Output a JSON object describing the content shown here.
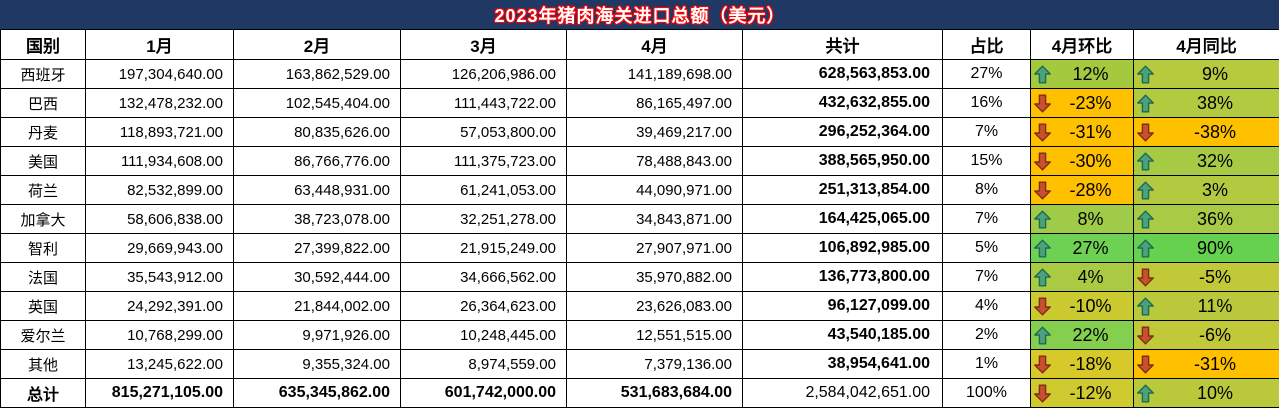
{
  "title": "2023年猪肉海关进口总额（美元）",
  "colors": {
    "title_bg": "#1F3864",
    "title_text": "#FFFFFF",
    "title_outline": "#FF0000",
    "grid_line": "#000000",
    "negative_cell": "#FFC000",
    "arrow_up_fill": "#4DA17C",
    "arrow_up_stroke": "#1E6B4D",
    "arrow_down_fill": "#C9502D",
    "arrow_down_stroke": "#7E2D18"
  },
  "table": {
    "headers": [
      "国别",
      "1月",
      "2月",
      "3月",
      "4月",
      "共计",
      "占比",
      "4月环比",
      "4月同比"
    ],
    "rows": [
      {
        "country": "西班牙",
        "values": [
          "197,304,640.00",
          "163,862,529.00",
          "126,206,986.00",
          "141,189,698.00"
        ],
        "total": "628,563,853.00",
        "share": "27%",
        "mom": {
          "dir": "up",
          "value": "12%",
          "bg": "#A4C93F"
        },
        "yoy": {
          "dir": "up",
          "value": "9%",
          "bg": "#B7C93C"
        },
        "is_total_row": false
      },
      {
        "country": "巴西",
        "values": [
          "132,478,232.00",
          "102,545,404.00",
          "111,443,722.00",
          "86,165,497.00"
        ],
        "total": "432,632,855.00",
        "share": "16%",
        "mom": {
          "dir": "down",
          "value": "-23%",
          "bg": "#FFC000"
        },
        "yoy": {
          "dir": "up",
          "value": "38%",
          "bg": "#B2CA40"
        },
        "is_total_row": false
      },
      {
        "country": "丹麦",
        "values": [
          "118,893,721.00",
          "80,835,626.00",
          "57,053,800.00",
          "39,469,217.00"
        ],
        "total": "296,252,364.00",
        "share": "7%",
        "mom": {
          "dir": "down",
          "value": "-31%",
          "bg": "#FFC000"
        },
        "yoy": {
          "dir": "down",
          "value": "-38%",
          "bg": "#FFC000"
        },
        "is_total_row": false
      },
      {
        "country": "美国",
        "values": [
          "111,934,608.00",
          "86,766,776.00",
          "111,375,723.00",
          "78,488,843.00"
        ],
        "total": "388,565,950.00",
        "share": "15%",
        "mom": {
          "dir": "down",
          "value": "-30%",
          "bg": "#FFC000"
        },
        "yoy": {
          "dir": "up",
          "value": "32%",
          "bg": "#A7CA45"
        },
        "is_total_row": false
      },
      {
        "country": "荷兰",
        "values": [
          "82,532,899.00",
          "63,448,931.00",
          "61,241,053.00",
          "44,090,971.00"
        ],
        "total": "251,313,854.00",
        "share": "8%",
        "mom": {
          "dir": "down",
          "value": "-28%",
          "bg": "#FFC000"
        },
        "yoy": {
          "dir": "up",
          "value": "3%",
          "bg": "#B3CA40"
        },
        "is_total_row": false
      },
      {
        "country": "加拿大",
        "values": [
          "58,606,838.00",
          "38,723,078.00",
          "32,251,278.00",
          "34,843,871.00"
        ],
        "total": "164,425,065.00",
        "share": "7%",
        "mom": {
          "dir": "up",
          "value": "8%",
          "bg": "#9FCB49"
        },
        "yoy": {
          "dir": "up",
          "value": "36%",
          "bg": "#A8CA44"
        },
        "is_total_row": false
      },
      {
        "country": "智利",
        "values": [
          "29,669,943.00",
          "27,399,822.00",
          "21,915,249.00",
          "27,907,971.00"
        ],
        "total": "106,892,985.00",
        "share": "5%",
        "mom": {
          "dir": "up",
          "value": "27%",
          "bg": "#6FD153"
        },
        "yoy": {
          "dir": "up",
          "value": "90%",
          "bg": "#66D14F"
        },
        "is_total_row": false
      },
      {
        "country": "法国",
        "values": [
          "35,543,912.00",
          "30,592,444.00",
          "34,666,562.00",
          "35,970,882.00"
        ],
        "total": "136,773,800.00",
        "share": "7%",
        "mom": {
          "dir": "up",
          "value": "4%",
          "bg": "#ABCA43"
        },
        "yoy": {
          "dir": "down",
          "value": "-5%",
          "bg": "#C2C938"
        },
        "is_total_row": false
      },
      {
        "country": "英国",
        "values": [
          "24,292,391.00",
          "21,844,002.00",
          "26,364,623.00",
          "23,626,083.00"
        ],
        "total": "96,127,099.00",
        "share": "4%",
        "mom": {
          "dir": "down",
          "value": "-10%",
          "bg": "#CCCA31"
        },
        "yoy": {
          "dir": "up",
          "value": "11%",
          "bg": "#B9C93B"
        },
        "is_total_row": false
      },
      {
        "country": "爱尔兰",
        "values": [
          "10,768,299.00",
          "9,971,926.00",
          "10,248,445.00",
          "12,551,515.00"
        ],
        "total": "43,540,185.00",
        "share": "2%",
        "mom": {
          "dir": "up",
          "value": "22%",
          "bg": "#85CF4F"
        },
        "yoy": {
          "dir": "down",
          "value": "-6%",
          "bg": "#C2C938"
        },
        "is_total_row": false
      },
      {
        "country": "其他",
        "values": [
          "13,245,622.00",
          "9,355,324.00",
          "8,974,559.00",
          "7,379,136.00"
        ],
        "total": "38,954,641.00",
        "share": "1%",
        "mom": {
          "dir": "down",
          "value": "-18%",
          "bg": "#D6C929"
        },
        "yoy": {
          "dir": "down",
          "value": "-31%",
          "bg": "#FFC000"
        },
        "is_total_row": false
      },
      {
        "country": "总计",
        "values": [
          "815,271,105.00",
          "635,345,862.00",
          "601,742,000.00",
          "531,683,684.00"
        ],
        "total": "2,584,042,651.00",
        "share": "100%",
        "mom": {
          "dir": "down",
          "value": "-12%",
          "bg": "#CFCA2F"
        },
        "yoy": {
          "dir": "up",
          "value": "10%",
          "bg": "#B9C93B"
        },
        "is_total_row": true
      }
    ]
  }
}
